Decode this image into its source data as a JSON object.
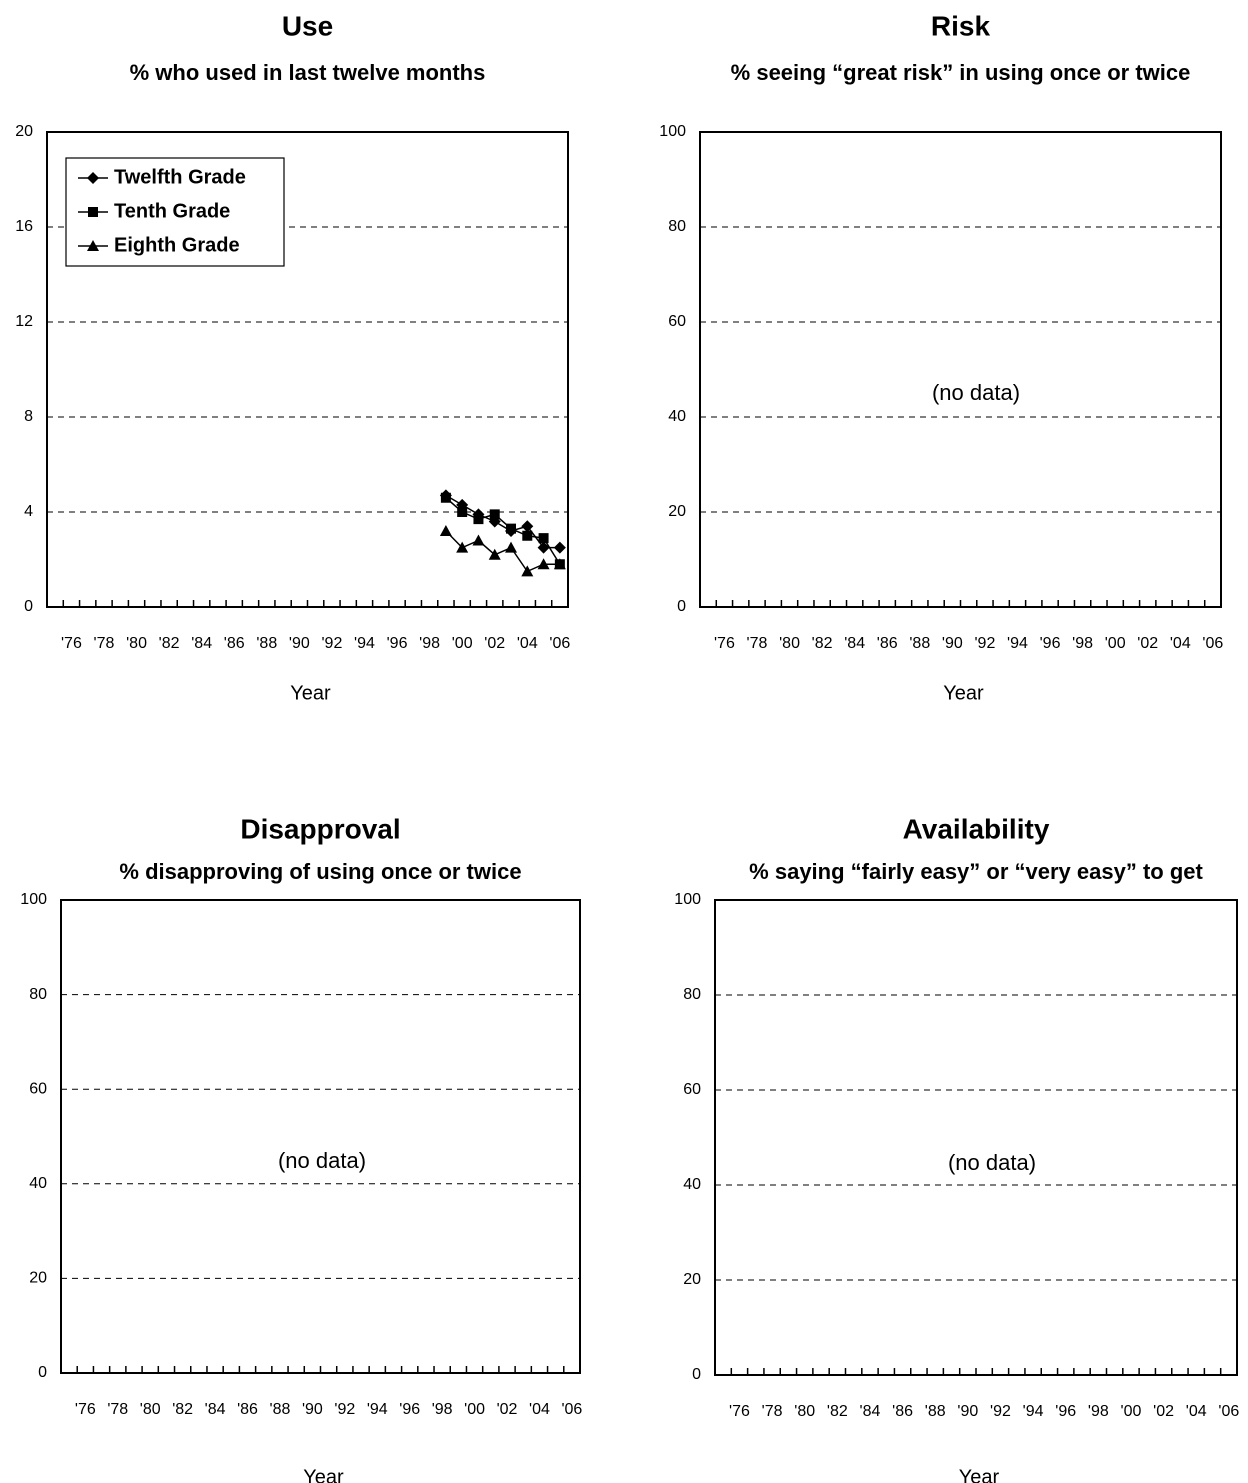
{
  "chart_data": [
    {
      "type": "line",
      "title": "Use",
      "subtitle": "% who used in last twelve months",
      "xlabel": "Year",
      "ylabel": "",
      "ylim": [
        0,
        20
      ],
      "yticks": [
        "0",
        "4",
        "8",
        "12",
        "16",
        "20"
      ],
      "xlim": [
        1975,
        2006
      ],
      "xticklabels": [
        "'76",
        "'78",
        "'80",
        "'82",
        "'84",
        "'86",
        "'88",
        "'90",
        "'92",
        "'94",
        "'96",
        "'98",
        "'00",
        "'02",
        "'04",
        "'06"
      ],
      "grid": true,
      "legend_position": "top-left",
      "no_data_label": "",
      "series": [
        {
          "name": "Twelfth Grade",
          "marker": "diamond",
          "x": [
            1999,
            2000,
            2001,
            2002,
            2003,
            2004,
            2005,
            2006
          ],
          "values": [
            4.7,
            4.3,
            3.9,
            3.6,
            3.2,
            3.4,
            2.5,
            2.5
          ]
        },
        {
          "name": "Tenth Grade",
          "marker": "square",
          "x": [
            1999,
            2000,
            2001,
            2002,
            2003,
            2004,
            2005,
            2006
          ],
          "values": [
            4.6,
            4.0,
            3.7,
            3.9,
            3.3,
            3.0,
            2.9,
            1.8
          ]
        },
        {
          "name": "Eighth Grade",
          "marker": "triangle",
          "x": [
            1999,
            2000,
            2001,
            2002,
            2003,
            2004,
            2005,
            2006
          ],
          "values": [
            3.2,
            2.5,
            2.8,
            2.2,
            2.5,
            1.5,
            1.8,
            1.8
          ]
        }
      ]
    },
    {
      "type": "line",
      "title": "Risk",
      "subtitle": "% seeing “great risk” in using once or twice",
      "xlabel": "Year",
      "ylabel": "",
      "ylim": [
        0,
        100
      ],
      "yticks": [
        "0",
        "20",
        "40",
        "60",
        "80",
        "100"
      ],
      "xlim": [
        1975,
        2006
      ],
      "xticklabels": [
        "'76",
        "'78",
        "'80",
        "'82",
        "'84",
        "'86",
        "'88",
        "'90",
        "'92",
        "'94",
        "'96",
        "'98",
        "'00",
        "'02",
        "'04",
        "'06"
      ],
      "grid": true,
      "no_data_label": "(no data)",
      "series": []
    },
    {
      "type": "line",
      "title": "Disapproval",
      "subtitle": "% disapproving of using once or twice",
      "xlabel": "Year",
      "ylabel": "",
      "ylim": [
        0,
        100
      ],
      "yticks": [
        "0",
        "20",
        "40",
        "60",
        "80",
        "100"
      ],
      "xlim": [
        1975,
        2006
      ],
      "xticklabels": [
        "'76",
        "'78",
        "'80",
        "'82",
        "'84",
        "'86",
        "'88",
        "'90",
        "'92",
        "'94",
        "'96",
        "'98",
        "'00",
        "'02",
        "'04",
        "'06"
      ],
      "grid": true,
      "no_data_label": "(no data)",
      "series": []
    },
    {
      "type": "line",
      "title": "Availability",
      "subtitle": "% saying “fairly easy” or “very easy” to get",
      "xlabel": "Year",
      "ylabel": "",
      "ylim": [
        0,
        100
      ],
      "yticks": [
        "0",
        "20",
        "40",
        "60",
        "80",
        "100"
      ],
      "xlim": [
        1975,
        2006
      ],
      "xticklabels": [
        "'76",
        "'78",
        "'80",
        "'82",
        "'84",
        "'86",
        "'88",
        "'90",
        "'92",
        "'94",
        "'96",
        "'98",
        "'00",
        "'02",
        "'04",
        "'06"
      ],
      "grid": true,
      "no_data_label": "(no data)",
      "series": []
    }
  ]
}
